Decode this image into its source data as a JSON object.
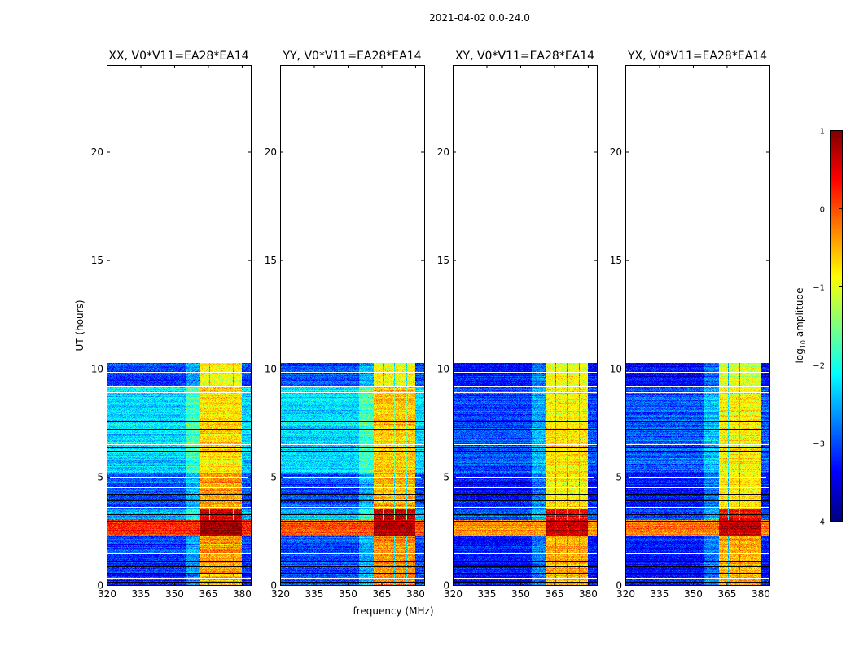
{
  "chart_data": {
    "type": "heatmap",
    "title": "2021-04-02 0.0-24.0",
    "xlabel": "frequency (MHz)",
    "ylabel": "UT (hours)",
    "xlim": [
      320,
      384
    ],
    "ylim": [
      0,
      24
    ],
    "xticks": [
      "320",
      "335",
      "350",
      "365",
      "380"
    ],
    "xtick_values": [
      320,
      335,
      350,
      365,
      380
    ],
    "yticks": [
      "0",
      "5",
      "10",
      "15",
      "20"
    ],
    "ytick_values": [
      0,
      5,
      10,
      15,
      20
    ],
    "colormap": "jet",
    "colorbar": {
      "label_prefix": "log",
      "label_sub": "10",
      "label_suffix": " amplitude",
      "range": [
        -4,
        1
      ],
      "ticks": [
        "1",
        "0",
        "−1",
        "−2",
        "−3",
        "−4"
      ],
      "tick_values": [
        1,
        0,
        -1,
        -2,
        -3,
        -4
      ]
    },
    "data_end_hours": 10.25,
    "bright_band_mhz": [
      361.5,
      380
    ],
    "band_gap_channels_mhz": [
      365.5,
      370.5,
      376
    ],
    "flagged_rows_hours": [
      0.35,
      1.45,
      3.1,
      3.6,
      4.5,
      4.75,
      5.0,
      6.5,
      8.9,
      9.2,
      9.85,
      10.0
    ],
    "dark_rows_hours": [
      0.15,
      0.55,
      0.85,
      1.1,
      2.95,
      3.25,
      3.9,
      4.2,
      4.95,
      6.2,
      6.4,
      7.2,
      7.6,
      9.22
    ],
    "panels": [
      {
        "title": "XX, V0*V11=EA28*EA14",
        "regions": [
          {
            "hours": [
              0,
              2.25
            ],
            "background": -3.1,
            "band": -0.4
          },
          {
            "hours": [
              2.25,
              3.0
            ],
            "background": 0.1,
            "band": 0.8
          },
          {
            "hours": [
              3.0,
              3.5
            ],
            "background": -2.6,
            "band": 0.5
          },
          {
            "hours": [
              3.5,
              5.2
            ],
            "background": -3.0,
            "band": -0.4
          },
          {
            "hours": [
              5.2,
              9.2
            ],
            "background": -2.3,
            "band": -0.7
          },
          {
            "hours": [
              9.2,
              10.25
            ],
            "background": -3.1,
            "band": -0.9
          }
        ]
      },
      {
        "title": "YY, V0*V11=EA28*EA14",
        "regions": [
          {
            "hours": [
              0,
              2.25
            ],
            "background": -3.0,
            "band": -0.3
          },
          {
            "hours": [
              2.25,
              3.0
            ],
            "background": 0.0,
            "band": 0.8
          },
          {
            "hours": [
              3.0,
              3.5
            ],
            "background": -2.5,
            "band": 0.6
          },
          {
            "hours": [
              3.5,
              5.2
            ],
            "background": -3.0,
            "band": -0.5
          },
          {
            "hours": [
              5.2,
              9.2
            ],
            "background": -2.3,
            "band": -0.6
          },
          {
            "hours": [
              9.2,
              10.25
            ],
            "background": -3.0,
            "band": -0.9
          }
        ]
      },
      {
        "title": "XY, V0*V11=EA28*EA14",
        "regions": [
          {
            "hours": [
              0,
              2.25
            ],
            "background": -3.3,
            "band": -0.5
          },
          {
            "hours": [
              2.25,
              3.0
            ],
            "background": -0.3,
            "band": 0.7
          },
          {
            "hours": [
              3.0,
              3.5
            ],
            "background": -3.0,
            "band": 0.4
          },
          {
            "hours": [
              3.5,
              5.2
            ],
            "background": -3.3,
            "band": -0.8
          },
          {
            "hours": [
              5.2,
              9.2
            ],
            "background": -3.0,
            "band": -0.8
          },
          {
            "hours": [
              9.2,
              10.25
            ],
            "background": -3.3,
            "band": -1.0
          }
        ]
      },
      {
        "title": "YX, V0*V11=EA28*EA14",
        "regions": [
          {
            "hours": [
              0,
              2.25
            ],
            "background": -3.3,
            "band": -0.5
          },
          {
            "hours": [
              2.25,
              3.0
            ],
            "background": -0.2,
            "band": 0.7
          },
          {
            "hours": [
              3.0,
              3.5
            ],
            "background": -3.0,
            "band": 0.4
          },
          {
            "hours": [
              3.5,
              5.2
            ],
            "background": -3.3,
            "band": -0.8
          },
          {
            "hours": [
              5.2,
              9.2
            ],
            "background": -2.9,
            "band": -0.8
          },
          {
            "hours": [
              9.2,
              10.25
            ],
            "background": -3.3,
            "band": -1.0
          }
        ]
      }
    ]
  }
}
